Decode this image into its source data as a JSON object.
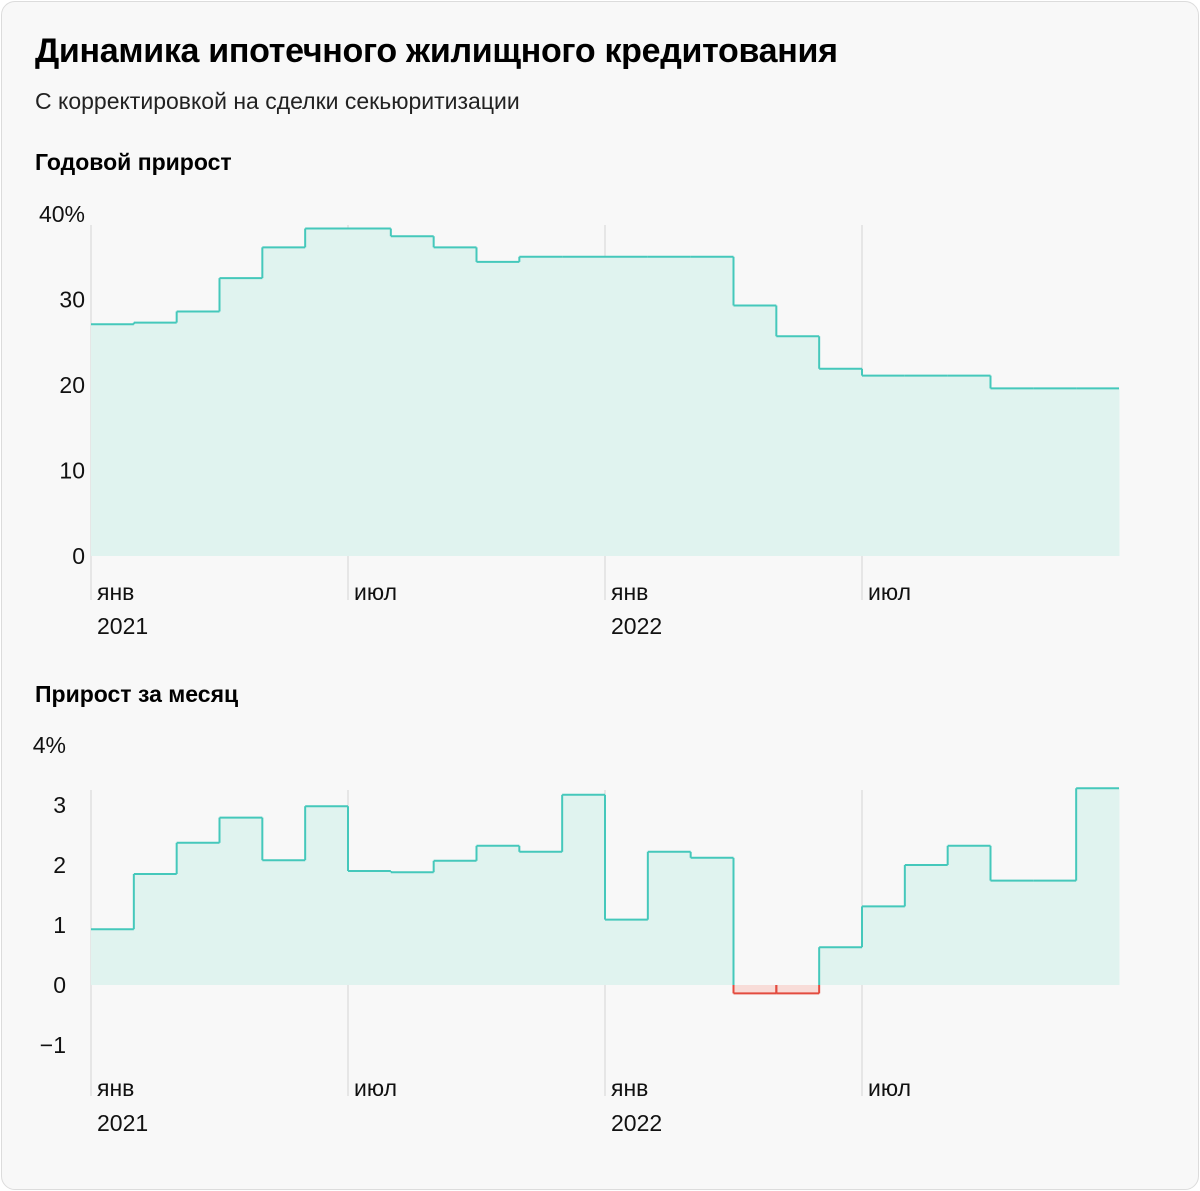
{
  "header": {
    "title": "Динамика ипотечного жилищного кредитования",
    "subtitle": "С корректировкой на сделки секьюритизации"
  },
  "colors": {
    "positive_line": "#45c8bb",
    "positive_fill": "#e0f3ef",
    "negative_line": "#e34b3f",
    "negative_fill": "#f8dcd8",
    "gridline": "#d4d4d4",
    "background": "#f8f8f8"
  },
  "chart_data": [
    {
      "type": "area",
      "step": true,
      "title": "Годовой прирост",
      "x_tick_labels": [
        {
          "month": "янв",
          "year": "2021",
          "index": 0
        },
        {
          "month": "июл",
          "year": "",
          "index": 6
        },
        {
          "month": "янв",
          "year": "2022",
          "index": 12
        },
        {
          "month": "июл",
          "year": "",
          "index": 18
        }
      ],
      "y_ticks": [
        "40%",
        "30",
        "20",
        "10",
        "0"
      ],
      "ylim": [
        0,
        40
      ],
      "x": [
        "янв 2021",
        "фев 2021",
        "мар 2021",
        "апр 2021",
        "май 2021",
        "июн 2021",
        "июл 2021",
        "авг 2021",
        "сен 2021",
        "окт 2021",
        "ноя 2021",
        "дек 2021",
        "янв 2022",
        "фев 2022",
        "мар 2022",
        "апр 2022",
        "май 2022",
        "июн 2022",
        "июл 2022",
        "авг 2022",
        "сен 2022",
        "окт 2022",
        "ноя 2022",
        "дек 2022"
      ],
      "values": [
        27.1,
        27.3,
        28.6,
        32.5,
        36.1,
        38.3,
        38.3,
        37.4,
        36.1,
        34.4,
        35.0,
        35.0,
        35.0,
        35.0,
        35.0,
        29.3,
        25.7,
        21.9,
        21.1,
        21.1,
        21.1,
        19.6,
        19.6,
        19.6
      ]
    },
    {
      "type": "area",
      "step": true,
      "title": "Прирост за месяц",
      "x_tick_labels": [
        {
          "month": "янв",
          "year": "2021",
          "index": 0
        },
        {
          "month": "июл",
          "year": "",
          "index": 6
        },
        {
          "month": "янв",
          "year": "2022",
          "index": 12
        },
        {
          "month": "июл",
          "year": "",
          "index": 18
        }
      ],
      "y_ticks": [
        "4%",
        "3",
        "2",
        "1",
        "0",
        "−1"
      ],
      "ylim": [
        -1,
        4
      ],
      "x": [
        "янв 2021",
        "фев 2021",
        "мар 2021",
        "апр 2021",
        "май 2021",
        "июн 2021",
        "июл 2021",
        "авг 2021",
        "сен 2021",
        "окт 2021",
        "ноя 2021",
        "дек 2021",
        "янв 2022",
        "фев 2022",
        "мар 2022",
        "апр 2022",
        "май 2022",
        "июн 2022",
        "июл 2022",
        "авг 2022",
        "сен 2022",
        "окт 2022",
        "ноя 2022",
        "дек 2022"
      ],
      "values": [
        0.93,
        1.85,
        2.37,
        2.79,
        2.08,
        2.98,
        1.9,
        1.88,
        2.07,
        2.32,
        2.22,
        3.17,
        1.09,
        2.22,
        2.12,
        -0.14,
        -0.14,
        0.63,
        1.31,
        2.0,
        2.32,
        1.74,
        1.74,
        3.28
      ]
    }
  ]
}
